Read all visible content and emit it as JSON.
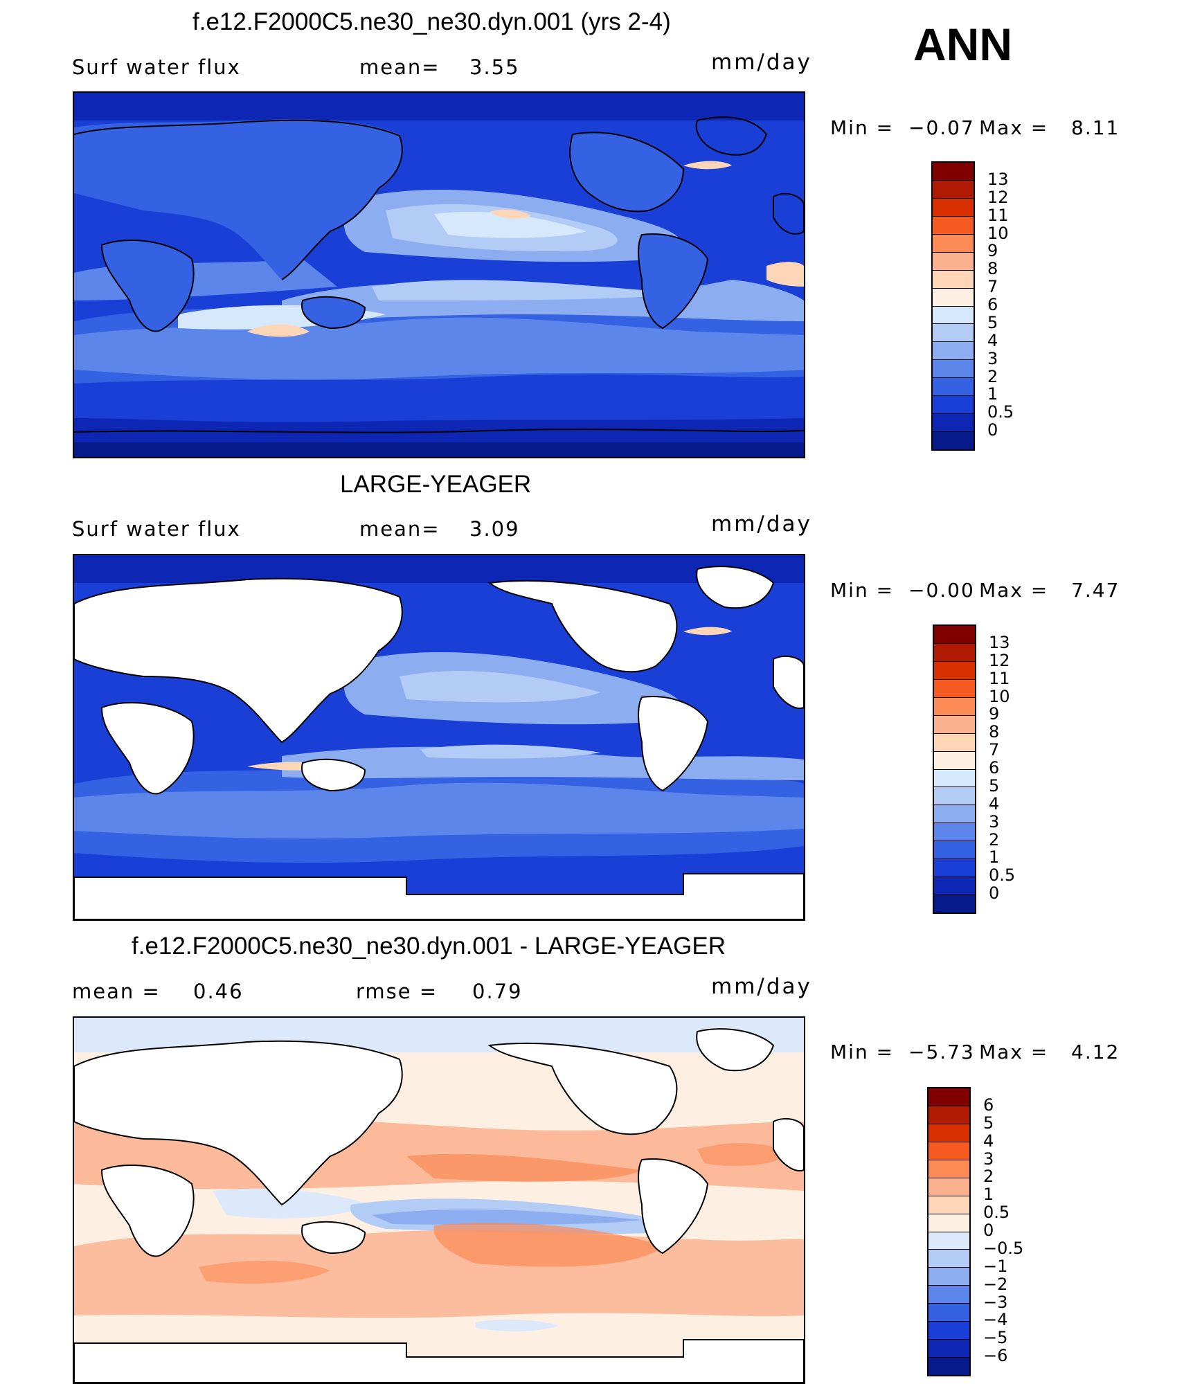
{
  "season": "ANN",
  "units": "mm/day",
  "panels": [
    {
      "title": "f.e12.F2000C5.ne30_ne30.dyn.001 (yrs 2-4)",
      "left_label": "Surf water flux",
      "mid_label": "mean=",
      "mid_value": "3.55",
      "min_label": "Min  =",
      "min_value": "−0.07",
      "max_label": "Max  =",
      "max_value": "8.11",
      "colorbar_labels": [
        "13",
        "12",
        "11",
        "10",
        "9",
        "8",
        "7",
        "6",
        "5",
        "4",
        "3",
        "2",
        "1",
        "0.5",
        "0"
      ]
    },
    {
      "title": "LARGE-YEAGER",
      "left_label": "Surf water flux",
      "mid_label": "mean=",
      "mid_value": "3.09",
      "min_label": "Min  =",
      "min_value": "−0.00",
      "max_label": "Max  =",
      "max_value": "7.47",
      "colorbar_labels": [
        "13",
        "12",
        "11",
        "10",
        "9",
        "8",
        "7",
        "6",
        "5",
        "4",
        "3",
        "2",
        "1",
        "0.5",
        "0"
      ]
    },
    {
      "title": "f.e12.F2000C5.ne30_ne30.dyn.001 - LARGE-YEAGER",
      "left_label": "mean  =",
      "left_value": "0.46",
      "mid_label": "rmse  =",
      "mid_value": "0.79",
      "min_label": "Min  =",
      "min_value": "−5.73",
      "max_label": "Max  =",
      "max_value": "4.12",
      "colorbar_labels": [
        "6",
        "5",
        "4",
        "3",
        "2",
        "1",
        "0.5",
        "0",
        "−0.5",
        "−1",
        "−2",
        "−3",
        "−4",
        "−5",
        "−6"
      ]
    }
  ],
  "colors": {
    "abs_scale": [
      "#800000",
      "#b01a00",
      "#d93000",
      "#f55a20",
      "#fb8a55",
      "#fbb08e",
      "#fdd6b8",
      "#fdf0e2",
      "#d6e8fb",
      "#b3ccf6",
      "#8caef0",
      "#5c86ea",
      "#3462e2",
      "#1a3fd6",
      "#0d26b4",
      "#061a8c"
    ],
    "diff_scale": [
      "#800000",
      "#b01a00",
      "#d93000",
      "#f55a20",
      "#fb8a55",
      "#fbb08e",
      "#fdd6b8",
      "#fdf0e2",
      "#dbe9fb",
      "#b3ccf6",
      "#8caef0",
      "#5c86ea",
      "#3462e2",
      "#1a3fd6",
      "#0d26b4",
      "#061a8c"
    ],
    "land": "#ffffff"
  }
}
